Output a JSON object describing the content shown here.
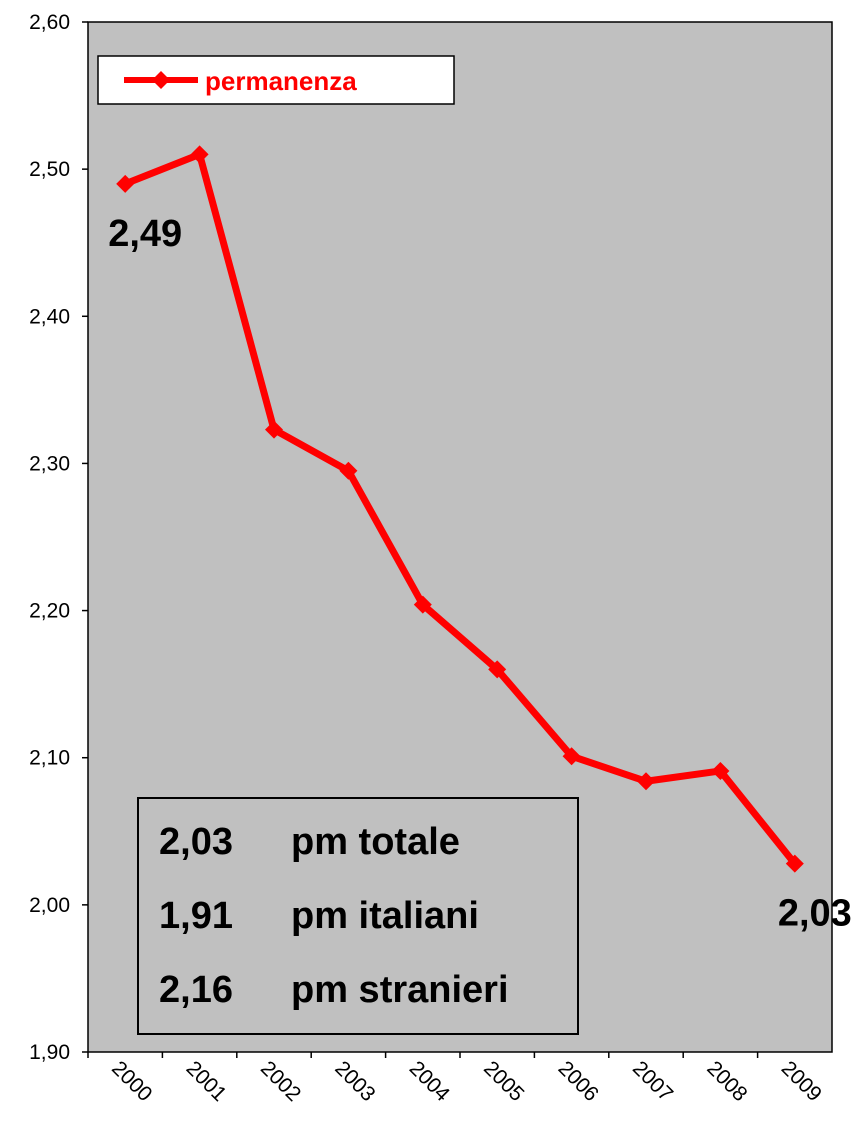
{
  "chart_data": {
    "type": "line",
    "title": "",
    "xlabel": "",
    "ylabel": "",
    "categories": [
      "2000",
      "2001",
      "2002",
      "2003",
      "2004",
      "2005",
      "2006",
      "2007",
      "2008",
      "2009"
    ],
    "series": [
      {
        "name": "permanenza",
        "color": "#ff0000",
        "marker": "diamond",
        "values": [
          2.49,
          2.51,
          2.323,
          2.295,
          2.204,
          2.16,
          2.101,
          2.084,
          2.091,
          2.028
        ]
      }
    ],
    "ylim": [
      1.9,
      2.6
    ],
    "y_ticks": [
      "1,90",
      "2,00",
      "2,10",
      "2,20",
      "2,30",
      "2,40",
      "2,50",
      "2,60"
    ],
    "grid": false,
    "plot_background": "#c0c0c0",
    "legend_position": "top-left",
    "data_labels": [
      {
        "category": "2000",
        "text": "2,49"
      },
      {
        "category": "2009",
        "text": "2,03"
      }
    ]
  },
  "summary_box": {
    "rows": [
      {
        "value": "2,03",
        "label": "pm totale"
      },
      {
        "value": "1,91",
        "label": "pm italiani"
      },
      {
        "value": "2,16",
        "label": "pm stranieri"
      }
    ]
  }
}
